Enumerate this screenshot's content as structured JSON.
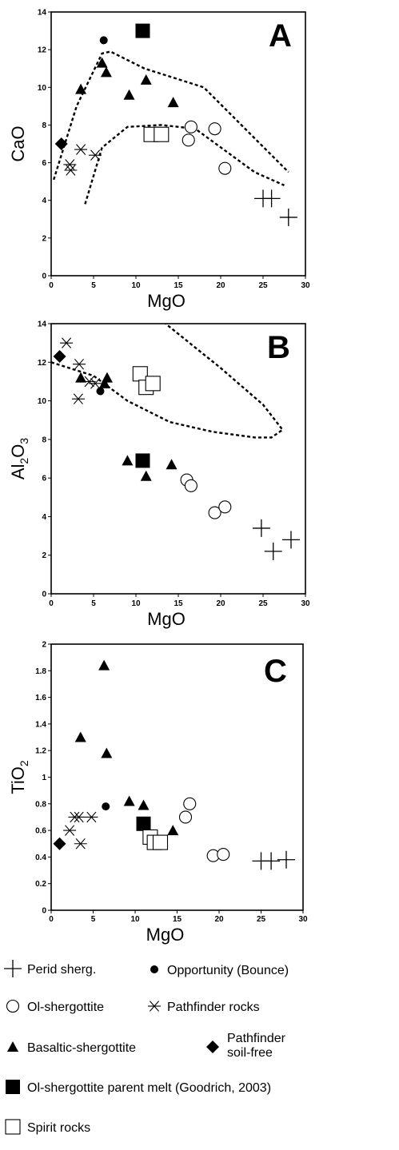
{
  "chart_data": [
    {
      "panel": "A",
      "type": "scatter",
      "xlabel": "MgO",
      "ylabel": "CaO",
      "xlim": [
        0,
        30
      ],
      "ylim": [
        0,
        14
      ],
      "xticks": [
        0,
        5,
        10,
        15,
        20,
        25,
        30
      ],
      "yticks": [
        0,
        2,
        4,
        6,
        8,
        10,
        12,
        14
      ],
      "series": [
        {
          "name": "Perid sherg.",
          "marker": "plus",
          "points": [
            [
              25,
              4.1
            ],
            [
              26,
              4.1
            ],
            [
              28,
              3.1
            ]
          ]
        },
        {
          "name": "Opportunity (Bounce)",
          "marker": "dot",
          "points": [
            [
              6.2,
              12.5
            ]
          ]
        },
        {
          "name": "Ol-shergottite",
          "marker": "circle",
          "points": [
            [
              16.5,
              7.9
            ],
            [
              16.2,
              7.2
            ],
            [
              19.3,
              7.8
            ],
            [
              20.5,
              5.7
            ]
          ]
        },
        {
          "name": "Pathfinder rocks",
          "marker": "asterisk",
          "points": [
            [
              2.2,
              5.9
            ],
            [
              2.3,
              5.6
            ],
            [
              3.5,
              6.7
            ],
            [
              5.2,
              6.4
            ]
          ]
        },
        {
          "name": "Basaltic-shergottite",
          "marker": "triangle",
          "points": [
            [
              3.5,
              9.9
            ],
            [
              6.0,
              11.3
            ],
            [
              6.5,
              10.8
            ],
            [
              9.2,
              9.6
            ],
            [
              11.2,
              10.4
            ],
            [
              14.4,
              9.2
            ]
          ]
        },
        {
          "name": "Pathfinder soil-free",
          "marker": "diamond",
          "points": [
            [
              1.2,
              7.0
            ]
          ]
        },
        {
          "name": "Ol-shergottite parent melt (Goodrich, 2003)",
          "marker": "square",
          "points": [
            [
              10.8,
              13.0
            ]
          ]
        },
        {
          "name": "Spirit rocks",
          "marker": "open-square",
          "points": [
            [
              11.8,
              7.5
            ],
            [
              13.0,
              7.5
            ]
          ]
        }
      ],
      "field_boundaries": [
        [
          [
            0.3,
            5.1
          ],
          [
            3.0,
            9.0
          ],
          [
            6.0,
            11.8
          ],
          [
            7.0,
            11.9
          ],
          [
            11.0,
            11.0
          ],
          [
            18.0,
            10.0
          ],
          [
            28.0,
            5.5
          ]
        ],
        [
          [
            4.0,
            3.8
          ],
          [
            6.0,
            6.8
          ],
          [
            9.0,
            7.9
          ],
          [
            13.0,
            8.0
          ],
          [
            17.0,
            7.8
          ],
          [
            24.0,
            5.5
          ],
          [
            27.5,
            4.8
          ]
        ]
      ]
    },
    {
      "panel": "B",
      "type": "scatter",
      "xlabel": "MgO",
      "ylabel": "Al2O3",
      "xlim": [
        0,
        30
      ],
      "ylim": [
        0,
        14
      ],
      "xticks": [
        0,
        5,
        10,
        15,
        20,
        25,
        30
      ],
      "yticks": [
        0,
        2,
        4,
        6,
        8,
        10,
        12,
        14
      ],
      "series": [
        {
          "name": "Perid sherg.",
          "marker": "plus",
          "points": [
            [
              24.8,
              3.4
            ],
            [
              26.2,
              2.2
            ],
            [
              28.3,
              2.8
            ]
          ]
        },
        {
          "name": "Opportunity (Bounce)",
          "marker": "dot",
          "points": [
            [
              5.8,
              10.5
            ]
          ]
        },
        {
          "name": "Ol-shergottite",
          "marker": "circle",
          "points": [
            [
              16.0,
              5.9
            ],
            [
              16.5,
              5.6
            ],
            [
              19.3,
              4.2
            ],
            [
              20.5,
              4.5
            ]
          ]
        },
        {
          "name": "Pathfinder rocks",
          "marker": "asterisk",
          "points": [
            [
              1.8,
              13.0
            ],
            [
              3.3,
              11.9
            ],
            [
              3.2,
              10.1
            ],
            [
              4.5,
              11.0
            ],
            [
              5.2,
              10.9
            ]
          ]
        },
        {
          "name": "Basaltic-shergottite",
          "marker": "triangle",
          "points": [
            [
              3.5,
              11.2
            ],
            [
              6.3,
              10.9
            ],
            [
              6.6,
              11.2
            ],
            [
              9.0,
              6.9
            ],
            [
              11.2,
              6.1
            ],
            [
              14.2,
              6.7
            ]
          ]
        },
        {
          "name": "Pathfinder soil-free",
          "marker": "diamond",
          "points": [
            [
              1.0,
              12.3
            ]
          ]
        },
        {
          "name": "Ol-shergottite parent melt (Goodrich, 2003)",
          "marker": "square",
          "points": [
            [
              10.8,
              6.9
            ]
          ]
        },
        {
          "name": "Spirit rocks",
          "marker": "open-square",
          "points": [
            [
              10.5,
              11.4
            ],
            [
              11.2,
              10.7
            ],
            [
              12.0,
              10.9
            ]
          ]
        }
      ],
      "field_boundaries": [
        [
          [
            0,
            12.0
          ],
          [
            5.0,
            11.3
          ],
          [
            9.0,
            10.0
          ],
          [
            14.0,
            8.9
          ],
          [
            19.0,
            8.4
          ],
          [
            24.0,
            8.1
          ],
          [
            26.0,
            8.1
          ],
          [
            27.3,
            8.5
          ],
          [
            25.0,
            9.8
          ],
          [
            20.0,
            11.7
          ],
          [
            13.5,
            14.0
          ]
        ]
      ]
    },
    {
      "panel": "C",
      "type": "scatter",
      "xlabel": "MgO",
      "ylabel": "TiO2",
      "xlim": [
        0,
        30
      ],
      "ylim": [
        0,
        2
      ],
      "xticks": [
        0,
        5,
        10,
        15,
        20,
        25,
        30
      ],
      "yticks": [
        0,
        0.2,
        0.4,
        0.6,
        0.8,
        1,
        1.2,
        1.4,
        1.6,
        1.8,
        2
      ],
      "series": [
        {
          "name": "Perid sherg.",
          "marker": "plus",
          "points": [
            [
              25.0,
              0.37
            ],
            [
              26.2,
              0.37
            ],
            [
              28.0,
              0.38
            ]
          ]
        },
        {
          "name": "Opportunity (Bounce)",
          "marker": "dot",
          "points": [
            [
              6.5,
              0.78
            ]
          ]
        },
        {
          "name": "Ol-shergottite",
          "marker": "circle",
          "points": [
            [
              16.0,
              0.7
            ],
            [
              16.5,
              0.8
            ],
            [
              19.3,
              0.41
            ],
            [
              20.5,
              0.42
            ]
          ]
        },
        {
          "name": "Pathfinder rocks",
          "marker": "asterisk",
          "points": [
            [
              2.2,
              0.6
            ],
            [
              2.8,
              0.7
            ],
            [
              3.3,
              0.7
            ],
            [
              3.5,
              0.5
            ],
            [
              4.8,
              0.7
            ]
          ]
        },
        {
          "name": "Basaltic-shergottite",
          "marker": "triangle",
          "points": [
            [
              3.5,
              1.3
            ],
            [
              6.3,
              1.84
            ],
            [
              6.6,
              1.18
            ],
            [
              9.3,
              0.82
            ],
            [
              11.0,
              0.79
            ],
            [
              14.5,
              0.6
            ]
          ]
        },
        {
          "name": "Pathfinder soil-free",
          "marker": "diamond",
          "points": [
            [
              1.0,
              0.5
            ]
          ]
        },
        {
          "name": "Ol-shergottite parent melt (Goodrich, 2003)",
          "marker": "square",
          "points": [
            [
              11.0,
              0.65
            ]
          ]
        },
        {
          "name": "Spirit rocks",
          "marker": "open-square",
          "points": [
            [
              11.8,
              0.55
            ],
            [
              12.3,
              0.51
            ],
            [
              13.0,
              0.51
            ]
          ]
        }
      ],
      "field_boundaries": []
    }
  ],
  "legend": {
    "items": [
      {
        "marker": "plus",
        "label": "Perid sherg."
      },
      {
        "marker": "dot",
        "label": "Opportunity (Bounce)"
      },
      {
        "marker": "circle",
        "label": "Ol-shergottite"
      },
      {
        "marker": "asterisk",
        "label": "Pathfinder rocks"
      },
      {
        "marker": "triangle",
        "label": "Basaltic-shergottite"
      },
      {
        "marker": "diamond",
        "label": "Pathfinder soil-free",
        "label_lines": [
          "Pathfinder",
          "soil-free"
        ]
      },
      {
        "marker": "square",
        "label": "Ol-shergottite parent melt (Goodrich, 2003)"
      },
      {
        "marker": "open-square",
        "label": "Spirit rocks"
      }
    ]
  },
  "colors": {
    "ink": "#000000",
    "background": "#ffffff"
  }
}
